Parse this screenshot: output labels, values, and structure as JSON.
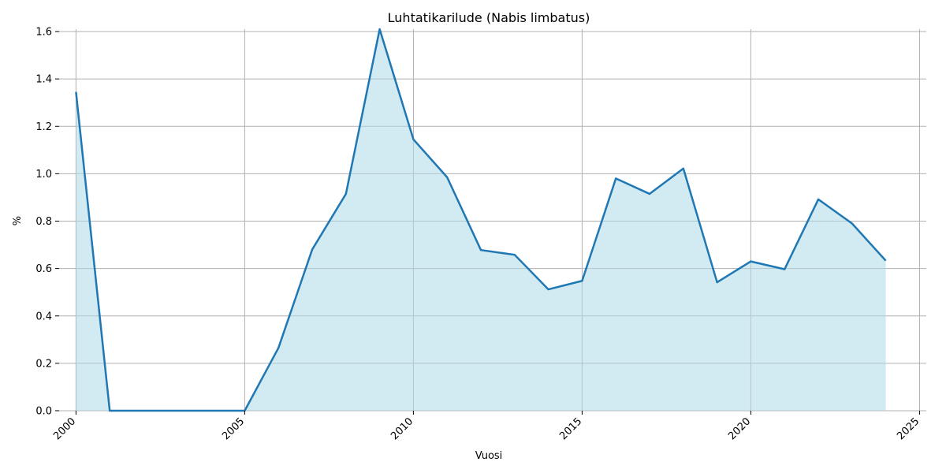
{
  "chart_data": {
    "type": "area",
    "title": "Luhtatikarilude (Nabis limbatus)",
    "xlabel": "Vuosi",
    "ylabel": "%",
    "xlim": [
      2000,
      2025
    ],
    "ylim": [
      0,
      1.6
    ],
    "x_ticks": [
      "2000",
      "2005",
      "2010",
      "2015",
      "2020",
      "2025"
    ],
    "y_ticks": [
      "0.0",
      "0.2",
      "0.4",
      "0.6",
      "0.8",
      "1.0",
      "1.2",
      "1.4",
      "1.6"
    ],
    "grid": true,
    "x_tick_rotation": "45deg",
    "line_color": "#1f77b4",
    "fill_color": "#add8e6",
    "series": [
      {
        "x": [
          2000,
          2001,
          2002,
          2003,
          2004,
          2005,
          2006,
          2007,
          2008,
          2009,
          2010,
          2011,
          2012,
          2013,
          2014,
          2015,
          2016,
          2017,
          2018,
          2019,
          2020,
          2021,
          2022,
          2023,
          2024
        ],
        "values": [
          1.345,
          0.0,
          0.0,
          0.0,
          0.0,
          0.0,
          0.265,
          0.68,
          0.915,
          1.61,
          1.145,
          0.985,
          0.678,
          0.658,
          0.512,
          0.548,
          0.98,
          0.915,
          1.022,
          0.542,
          0.63,
          0.597,
          0.892,
          0.79,
          0.633
        ]
      }
    ]
  }
}
